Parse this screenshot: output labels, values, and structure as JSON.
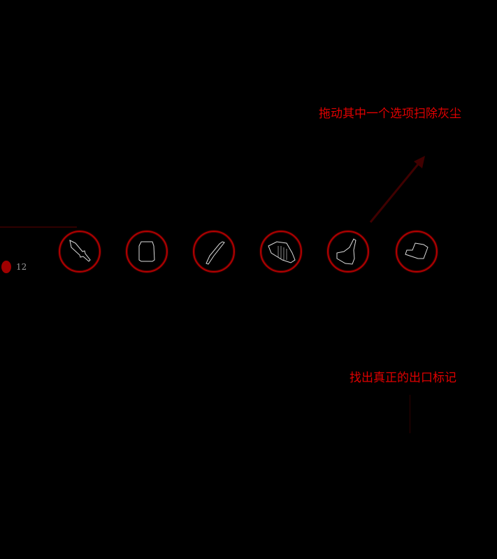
{
  "hints": {
    "top": "拖动其中一个选项扫除灰尘",
    "bottom": "找出真正的出口标记"
  },
  "hud": {
    "coin_count": "12",
    "coin_icon": "coin-icon"
  },
  "inventory": [
    {
      "icon": "knife-icon"
    },
    {
      "icon": "jar-icon"
    },
    {
      "icon": "stick-icon"
    },
    {
      "icon": "feather-duster-icon"
    },
    {
      "icon": "brush-icon"
    },
    {
      "icon": "sponge-icon"
    }
  ],
  "colors": {
    "accent": "#e00000",
    "ring": "#b00000"
  }
}
